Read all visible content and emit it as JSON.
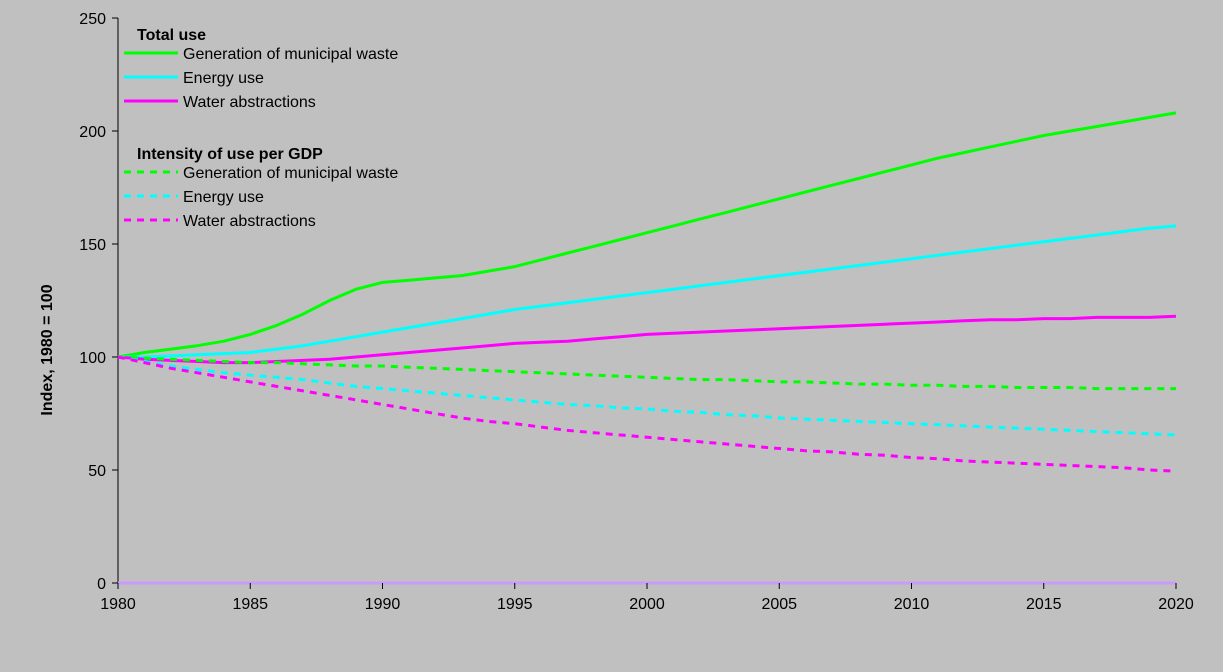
{
  "chart_data": {
    "type": "line",
    "title": "",
    "xlabel": "",
    "ylabel": "Index, 1980 = 100",
    "xlim": [
      1980,
      2020
    ],
    "ylim": [
      0,
      250
    ],
    "x_ticks": [
      "1980",
      "1985",
      "1990",
      "1995",
      "2000",
      "2005",
      "2010",
      "2015",
      "2020"
    ],
    "y_ticks": [
      "0",
      "50",
      "100",
      "150",
      "200",
      "250"
    ],
    "grid": false,
    "legend_position": "top-left",
    "x": [
      1980,
      1981,
      1982,
      1983,
      1984,
      1985,
      1986,
      1987,
      1988,
      1989,
      1990,
      1991,
      1992,
      1993,
      1994,
      1995,
      1996,
      1997,
      1998,
      1999,
      2000,
      2001,
      2002,
      2003,
      2004,
      2005,
      2006,
      2007,
      2008,
      2009,
      2010,
      2011,
      2012,
      2013,
      2014,
      2015,
      2016,
      2017,
      2018,
      2019,
      2020
    ],
    "legend_groups": [
      {
        "heading": "Total use",
        "style": "solid"
      },
      {
        "heading": "Intensity of use per GDP",
        "style": "dashed"
      }
    ],
    "series": [
      {
        "name": "Generation of municipal waste",
        "group": 0,
        "color": "#00ff00",
        "values": [
          100,
          102,
          103.5,
          105,
          107,
          110,
          114,
          119,
          125,
          130,
          133,
          134,
          135,
          136,
          138,
          140,
          143,
          146,
          149,
          152,
          155,
          158,
          161,
          164,
          167,
          170,
          173,
          176,
          179,
          182,
          185,
          188,
          190.5,
          193,
          195.5,
          198,
          200,
          202,
          204,
          206,
          208
        ]
      },
      {
        "name": "Energy use",
        "group": 0,
        "color": "#00ffff",
        "values": [
          100,
          100,
          100.5,
          101,
          101.5,
          102,
          103.5,
          105,
          107,
          109,
          111,
          113,
          115,
          117,
          119,
          121,
          122.5,
          124,
          125.5,
          127,
          128.5,
          130,
          131.5,
          133,
          134.5,
          136,
          137.5,
          139,
          140.5,
          142,
          143.5,
          145,
          146.5,
          148,
          149.5,
          151,
          152.5,
          154,
          155.5,
          157,
          158
        ]
      },
      {
        "name": "Water abstractions",
        "group": 0,
        "color": "#ff00ff",
        "values": [
          100,
          99,
          98.5,
          98,
          97.5,
          97.5,
          98,
          98.5,
          99,
          100,
          101,
          102,
          103,
          104,
          105,
          106,
          106.5,
          107,
          108,
          109,
          110,
          110.5,
          111,
          111.5,
          112,
          112.5,
          113,
          113.5,
          114,
          114.5,
          115,
          115.5,
          116,
          116.5,
          116.5,
          117,
          117,
          117.5,
          117.5,
          117.5,
          118
        ]
      },
      {
        "name": "Generation of municipal waste",
        "group": 1,
        "color": "#00ff00",
        "values": [
          100,
          99.5,
          99,
          98.5,
          98,
          97.5,
          97.5,
          97,
          96.5,
          96,
          96,
          95.5,
          95,
          94.5,
          94,
          93.5,
          93,
          92.5,
          92,
          91.5,
          91,
          90.5,
          90,
          90,
          89.5,
          89,
          89,
          88.5,
          88,
          88,
          87.5,
          87.5,
          87,
          87,
          86.5,
          86.5,
          86.5,
          86,
          86,
          86,
          86
        ]
      },
      {
        "name": "Energy use",
        "group": 1,
        "color": "#00ffff",
        "values": [
          100,
          98,
          96,
          94.5,
          93,
          92,
          91,
          90,
          88.5,
          87,
          86,
          85,
          84,
          83,
          82,
          81,
          80,
          79,
          78.5,
          77.5,
          77,
          76,
          75.5,
          74.5,
          74,
          73,
          72.5,
          72,
          71.5,
          71,
          70.5,
          70,
          69.5,
          69,
          68.5,
          68,
          67.5,
          67,
          66.5,
          66,
          65.5
        ]
      },
      {
        "name": "Water abstractions",
        "group": 1,
        "color": "#ff00ff",
        "values": [
          100,
          97.5,
          95,
          93,
          91,
          89,
          87,
          85,
          83,
          81,
          79,
          77,
          75,
          73,
          71.5,
          70.5,
          69,
          67.5,
          66.5,
          65.5,
          64.5,
          63.5,
          62.5,
          61.5,
          60.5,
          59.5,
          58.5,
          58,
          57,
          56.5,
          55.5,
          55,
          54,
          53.5,
          53,
          52.5,
          52,
          51.5,
          51,
          50,
          49.5
        ]
      }
    ],
    "colors": {
      "background": "#c0c0c0",
      "baseline": "#cc99ff",
      "axis": "#000000"
    }
  }
}
